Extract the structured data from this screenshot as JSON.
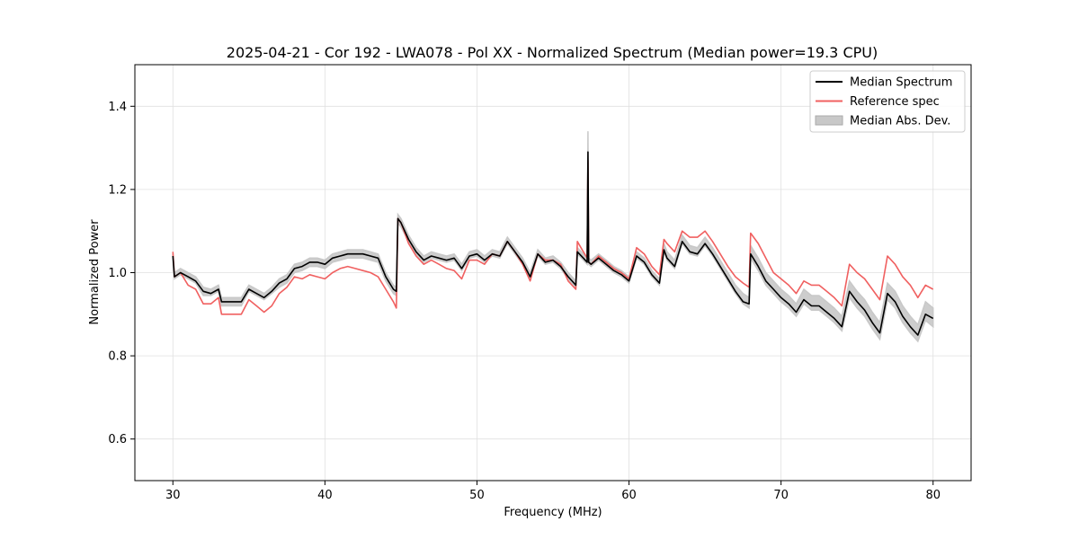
{
  "chart_data": {
    "type": "line",
    "title": "2025-04-21 - Cor 192 - LWA078 - Pol XX - Normalized Spectrum (Median power=19.3 CPU)",
    "xlabel": "Frequency (MHz)",
    "ylabel": "Normalized Power",
    "xlim": [
      27.5,
      82.5
    ],
    "ylim": [
      0.5,
      1.5
    ],
    "xticks": [
      30,
      40,
      50,
      60,
      70,
      80
    ],
    "yticks": [
      0.6,
      0.8,
      1.0,
      1.2,
      1.4
    ],
    "xtick_labels": [
      "30",
      "40",
      "50",
      "60",
      "70",
      "80"
    ],
    "ytick_labels": [
      "0.6",
      "0.8",
      "1.0",
      "1.2",
      "1.4"
    ],
    "grid": true,
    "legend_position": "top-right",
    "series": [
      {
        "name": "Median Abs. Dev.",
        "kind": "band",
        "color": "#c8c8c8",
        "x": [
          30.0,
          30.1,
          30.5,
          31.0,
          31.5,
          32.0,
          32.5,
          33.0,
          33.2,
          33.5,
          34.0,
          34.5,
          35.0,
          35.5,
          36.0,
          36.5,
          37.0,
          37.5,
          38.0,
          38.5,
          39.0,
          39.5,
          40.0,
          40.5,
          41.0,
          41.5,
          42.0,
          42.5,
          43.0,
          43.5,
          44.0,
          44.5,
          44.7,
          44.8,
          45.0,
          45.5,
          46.0,
          46.5,
          47.0,
          47.5,
          48.0,
          48.5,
          49.0,
          49.5,
          50.0,
          50.5,
          51.0,
          51.5,
          52.0,
          52.5,
          53.0,
          53.5,
          54.0,
          54.5,
          55.0,
          55.5,
          56.0,
          56.5,
          56.6,
          57.0,
          57.25,
          57.3,
          57.35,
          57.5,
          58.0,
          58.5,
          59.0,
          59.5,
          60.0,
          60.5,
          61.0,
          61.5,
          62.0,
          62.3,
          62.5,
          63.0,
          63.5,
          64.0,
          64.5,
          65.0,
          65.5,
          66.0,
          66.5,
          67.0,
          67.5,
          67.9,
          68.0,
          68.5,
          69.0,
          69.5,
          70.0,
          70.5,
          71.0,
          71.5,
          72.0,
          72.5,
          73.0,
          73.5,
          74.0,
          74.5,
          75.0,
          75.5,
          76.0,
          76.5,
          77.0,
          77.5,
          78.0,
          78.5,
          79.0,
          79.5,
          80.0
        ],
        "upper": [
          1.045,
          1.0,
          1.01,
          1.0,
          0.99,
          0.965,
          0.96,
          0.97,
          0.94,
          0.94,
          0.94,
          0.94,
          0.97,
          0.96,
          0.95,
          0.965,
          0.985,
          0.995,
          1.02,
          1.025,
          1.035,
          1.035,
          1.03,
          1.045,
          1.05,
          1.055,
          1.055,
          1.055,
          1.05,
          1.045,
          1.0,
          0.97,
          0.965,
          1.14,
          1.13,
          1.09,
          1.06,
          1.04,
          1.05,
          1.045,
          1.04,
          1.045,
          1.02,
          1.05,
          1.055,
          1.04,
          1.055,
          1.05,
          1.085,
          1.06,
          1.035,
          1.0,
          1.055,
          1.035,
          1.04,
          1.025,
          1.0,
          0.98,
          1.06,
          1.045,
          1.035,
          1.34,
          1.035,
          1.03,
          1.045,
          1.03,
          1.015,
          1.005,
          0.99,
          1.05,
          1.035,
          1.005,
          0.985,
          1.07,
          1.05,
          1.03,
          1.09,
          1.065,
          1.06,
          1.085,
          1.06,
          1.03,
          1.0,
          0.97,
          0.95,
          0.94,
          1.065,
          1.035,
          1.0,
          0.98,
          0.96,
          0.945,
          0.925,
          0.96,
          0.945,
          0.945,
          0.93,
          0.915,
          0.895,
          0.98,
          0.955,
          0.935,
          0.905,
          0.88,
          0.975,
          0.955,
          0.92,
          0.895,
          0.875,
          0.93,
          0.915
        ],
        "lower": [
          1.035,
          0.985,
          0.995,
          0.985,
          0.975,
          0.945,
          0.945,
          0.955,
          0.92,
          0.92,
          0.92,
          0.92,
          0.955,
          0.945,
          0.935,
          0.95,
          0.965,
          0.975,
          1.0,
          1.005,
          1.015,
          1.015,
          1.01,
          1.025,
          1.03,
          1.035,
          1.035,
          1.035,
          1.03,
          1.025,
          0.98,
          0.95,
          0.945,
          1.12,
          1.11,
          1.075,
          1.045,
          1.025,
          1.035,
          1.03,
          1.025,
          1.03,
          1.005,
          1.035,
          1.04,
          1.025,
          1.04,
          1.035,
          1.07,
          1.045,
          1.02,
          0.985,
          1.04,
          1.02,
          1.025,
          1.01,
          0.985,
          0.965,
          1.045,
          1.03,
          1.02,
          1.27,
          1.02,
          1.015,
          1.03,
          1.015,
          1.0,
          0.99,
          0.975,
          1.035,
          1.02,
          0.99,
          0.97,
          1.05,
          1.03,
          1.01,
          1.07,
          1.045,
          1.04,
          1.065,
          1.04,
          1.01,
          0.98,
          0.95,
          0.925,
          0.915,
          1.035,
          1.005,
          0.97,
          0.95,
          0.93,
          0.915,
          0.895,
          0.925,
          0.91,
          0.91,
          0.895,
          0.88,
          0.86,
          0.94,
          0.915,
          0.895,
          0.865,
          0.84,
          0.935,
          0.915,
          0.88,
          0.855,
          0.835,
          0.885,
          0.87
        ]
      },
      {
        "name": "Reference spec",
        "kind": "line",
        "color": "#f06060",
        "x": [
          30.0,
          30.1,
          30.5,
          31.0,
          31.5,
          32.0,
          32.5,
          33.0,
          33.2,
          33.5,
          34.0,
          34.5,
          35.0,
          35.5,
          36.0,
          36.5,
          37.0,
          37.5,
          38.0,
          38.5,
          39.0,
          39.5,
          40.0,
          40.5,
          41.0,
          41.5,
          42.0,
          42.5,
          43.0,
          43.5,
          44.0,
          44.5,
          44.7,
          44.8,
          45.0,
          45.5,
          46.0,
          46.5,
          47.0,
          47.5,
          48.0,
          48.5,
          49.0,
          49.5,
          50.0,
          50.5,
          51.0,
          51.5,
          52.0,
          52.5,
          53.0,
          53.5,
          54.0,
          54.5,
          55.0,
          55.5,
          56.0,
          56.5,
          56.6,
          57.0,
          57.25,
          57.3,
          57.35,
          57.5,
          58.0,
          58.5,
          59.0,
          59.5,
          60.0,
          60.5,
          61.0,
          61.5,
          62.0,
          62.3,
          62.5,
          63.0,
          63.5,
          64.0,
          64.5,
          65.0,
          65.5,
          66.0,
          66.5,
          67.0,
          67.5,
          67.9,
          68.0,
          68.5,
          69.0,
          69.5,
          70.0,
          70.5,
          71.0,
          71.5,
          72.0,
          72.5,
          73.0,
          73.5,
          74.0,
          74.5,
          75.0,
          75.5,
          76.0,
          76.5,
          77.0,
          77.5,
          78.0,
          78.5,
          79.0,
          79.5,
          80.0
        ],
        "values": [
          1.05,
          0.99,
          1.0,
          0.97,
          0.96,
          0.925,
          0.925,
          0.94,
          0.9,
          0.9,
          0.9,
          0.9,
          0.935,
          0.92,
          0.905,
          0.92,
          0.95,
          0.965,
          0.99,
          0.985,
          0.995,
          0.99,
          0.985,
          1.0,
          1.01,
          1.015,
          1.01,
          1.005,
          1.0,
          0.99,
          0.96,
          0.93,
          0.915,
          1.13,
          1.12,
          1.07,
          1.04,
          1.02,
          1.03,
          1.02,
          1.01,
          1.005,
          0.985,
          1.03,
          1.03,
          1.02,
          1.045,
          1.04,
          1.075,
          1.05,
          1.02,
          0.98,
          1.045,
          1.03,
          1.03,
          1.02,
          0.98,
          0.96,
          1.075,
          1.05,
          1.035,
          1.27,
          1.025,
          1.02,
          1.04,
          1.025,
          1.01,
          1.0,
          0.985,
          1.06,
          1.045,
          1.015,
          0.995,
          1.08,
          1.07,
          1.05,
          1.1,
          1.085,
          1.085,
          1.1,
          1.075,
          1.045,
          1.015,
          0.99,
          0.975,
          0.965,
          1.095,
          1.07,
          1.035,
          1.0,
          0.985,
          0.97,
          0.95,
          0.98,
          0.97,
          0.97,
          0.955,
          0.94,
          0.92,
          1.02,
          1.0,
          0.985,
          0.96,
          0.935,
          1.04,
          1.02,
          0.99,
          0.97,
          0.94,
          0.97,
          0.96
        ]
      },
      {
        "name": "Median Spectrum",
        "kind": "line",
        "color": "#000000",
        "x": [
          30.0,
          30.1,
          30.5,
          31.0,
          31.5,
          32.0,
          32.5,
          33.0,
          33.2,
          33.5,
          34.0,
          34.5,
          35.0,
          35.5,
          36.0,
          36.5,
          37.0,
          37.5,
          38.0,
          38.5,
          39.0,
          39.5,
          40.0,
          40.5,
          41.0,
          41.5,
          42.0,
          42.5,
          43.0,
          43.5,
          44.0,
          44.5,
          44.7,
          44.8,
          45.0,
          45.5,
          46.0,
          46.5,
          47.0,
          47.5,
          48.0,
          48.5,
          49.0,
          49.5,
          50.0,
          50.5,
          51.0,
          51.5,
          52.0,
          52.5,
          53.0,
          53.5,
          54.0,
          54.5,
          55.0,
          55.5,
          56.0,
          56.5,
          56.6,
          57.0,
          57.25,
          57.3,
          57.35,
          57.5,
          58.0,
          58.5,
          59.0,
          59.5,
          60.0,
          60.5,
          61.0,
          61.5,
          62.0,
          62.3,
          62.5,
          63.0,
          63.5,
          64.0,
          64.5,
          65.0,
          65.5,
          66.0,
          66.5,
          67.0,
          67.5,
          67.9,
          68.0,
          68.5,
          69.0,
          69.5,
          70.0,
          70.5,
          71.0,
          71.5,
          72.0,
          72.5,
          73.0,
          73.5,
          74.0,
          74.5,
          75.0,
          75.5,
          76.0,
          76.5,
          77.0,
          77.5,
          78.0,
          78.5,
          79.0,
          79.5,
          80.0
        ],
        "values": [
          1.04,
          0.99,
          1.0,
          0.99,
          0.98,
          0.955,
          0.95,
          0.96,
          0.93,
          0.93,
          0.93,
          0.93,
          0.96,
          0.95,
          0.94,
          0.955,
          0.975,
          0.985,
          1.01,
          1.015,
          1.025,
          1.025,
          1.02,
          1.035,
          1.04,
          1.045,
          1.045,
          1.045,
          1.04,
          1.035,
          0.99,
          0.96,
          0.955,
          1.13,
          1.12,
          1.08,
          1.05,
          1.03,
          1.04,
          1.035,
          1.03,
          1.035,
          1.01,
          1.04,
          1.045,
          1.03,
          1.045,
          1.04,
          1.075,
          1.05,
          1.025,
          0.99,
          1.045,
          1.025,
          1.03,
          1.015,
          0.99,
          0.97,
          1.05,
          1.035,
          1.025,
          1.29,
          1.025,
          1.02,
          1.035,
          1.02,
          1.005,
          0.995,
          0.98,
          1.04,
          1.025,
          0.995,
          0.975,
          1.055,
          1.035,
          1.015,
          1.075,
          1.05,
          1.045,
          1.07,
          1.045,
          1.015,
          0.985,
          0.955,
          0.93,
          0.925,
          1.045,
          1.015,
          0.98,
          0.96,
          0.94,
          0.925,
          0.905,
          0.935,
          0.92,
          0.92,
          0.905,
          0.89,
          0.87,
          0.955,
          0.93,
          0.91,
          0.88,
          0.855,
          0.95,
          0.93,
          0.895,
          0.87,
          0.85,
          0.9,
          0.89
        ]
      }
    ],
    "legend": [
      {
        "label": "Median Spectrum",
        "kind": "line",
        "color": "#000000"
      },
      {
        "label": "Reference spec",
        "kind": "line",
        "color": "#f06060"
      },
      {
        "label": "Median Abs. Dev.",
        "kind": "patch",
        "color": "#c8c8c8"
      }
    ]
  }
}
